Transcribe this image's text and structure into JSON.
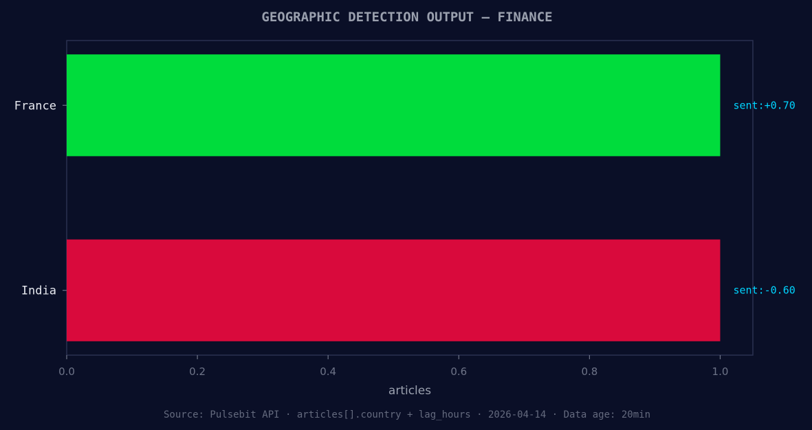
{
  "chart_data": {
    "type": "bar",
    "orientation": "horizontal",
    "title": "GEOGRAPHIC DETECTION OUTPUT — FINANCE",
    "categories": [
      "France",
      "India"
    ],
    "values": [
      1.0,
      1.0
    ],
    "bar_colors": [
      "#00dc3c",
      "#d90a3c"
    ],
    "annotations": [
      "sent:+0.70",
      "sent:-0.60"
    ],
    "annotation_color": "#00d4ff",
    "xlabel": "articles",
    "ylabel": "",
    "xlim": [
      0,
      1.05
    ],
    "xticks": [
      0.0,
      0.2,
      0.4,
      0.6,
      0.8,
      1.0
    ],
    "xtick_labels": [
      "0.0",
      "0.2",
      "0.4",
      "0.6",
      "0.8",
      "1.0"
    ],
    "grid": false,
    "legend": "none",
    "background": "#0a0f27",
    "footer": "Source: Pulsebit API · articles[].country + lag_hours · 2026-04-14 · Data age: 20min"
  }
}
